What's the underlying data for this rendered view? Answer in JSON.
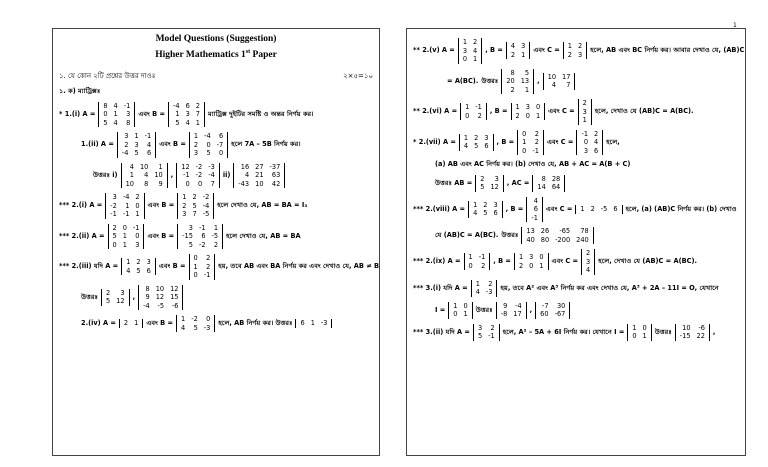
{
  "pages": [
    {
      "title": [
        "Model Questions (Suggestion)",
        "Higher Mathematics 1",
        "st",
        " Paper"
      ],
      "instruction": {
        "text": "১.     যে কোন ২টি প্রশ্নের উত্তর দাওঃ",
        "marks": "২×৫=১০"
      },
      "lines": [
        [
          "১. ক) ম্যাট্রিক্সঃ"
        ],
        [
          "*      1.(i) A =",
          {
            "matrix": [
              [
                8,
                4,
                -1
              ],
              [
                0,
                1,
                3
              ],
              [
                5,
                4,
                8
              ]
            ]
          },
          "এবং B =",
          {
            "matrix": [
              [
                -4,
                6,
                2
              ],
              [
                1,
                3,
                7
              ],
              [
                5,
                4,
                1
              ]
            ]
          },
          "ম্যাট্রিক্স দুইটির সমষ্টি ও অন্তর নির্ণয় কর।"
        ],
        [
          "1.(ii) A =",
          {
            "matrix": [
              [
                3,
                1,
                -1
              ],
              [
                2,
                3,
                4
              ],
              [
                -4,
                5,
                6
              ]
            ]
          },
          "এবং B =",
          {
            "matrix": [
              [
                1,
                -4,
                6
              ],
              [
                2,
                0,
                -7
              ],
              [
                3,
                5,
                0
              ]
            ]
          },
          "হলে 7A – 5B নির্ণয় কর।"
        ],
        [
          "উত্তরঃ i)",
          {
            "matrix": [
              [
                4,
                10,
                1
              ],
              [
                1,
                4,
                10
              ],
              [
                10,
                8,
                9
              ]
            ]
          },
          ",",
          {
            "matrix": [
              [
                12,
                -2,
                -3
              ],
              [
                -1,
                -2,
                -4
              ],
              [
                0,
                0,
                7
              ]
            ]
          },
          "ii)",
          {
            "matrix": [
              [
                16,
                27,
                -37
              ],
              [
                4,
                21,
                63
              ],
              [
                -43,
                10,
                42
              ]
            ]
          }
        ],
        [
          "*** 2.(i) A =",
          {
            "matrix": [
              [
                3,
                -4,
                2
              ],
              [
                -2,
                1,
                0
              ],
              [
                -1,
                -1,
                1
              ]
            ]
          },
          "এবং B =",
          {
            "matrix": [
              [
                1,
                2,
                -2
              ],
              [
                2,
                5,
                -4
              ],
              [
                3,
                7,
                -5
              ]
            ]
          },
          "হলে দেখাও যে, AB = BA = I₃"
        ],
        [
          "*** 2.(ii) A =",
          {
            "matrix": [
              [
                2,
                0,
                -1
              ],
              [
                5,
                1,
                0
              ],
              [
                0,
                1,
                3
              ]
            ]
          },
          "এবং B =",
          {
            "matrix": [
              [
                3,
                -1,
                1
              ],
              [
                -15,
                6,
                -5
              ],
              [
                5,
                -2,
                2
              ]
            ]
          },
          "হলে দেখাও যে, AB = BA"
        ],
        [
          "*** 2.(iii) যদি A =",
          {
            "matrix": [
              [
                1,
                2,
                3
              ],
              [
                4,
                5,
                6
              ]
            ]
          },
          "এবং B =",
          {
            "matrix": [
              [
                0,
                2
              ],
              [
                1,
                2
              ],
              [
                0,
                -1
              ]
            ]
          },
          "হয়, তবে AB এবং BA নির্ণয় কর এবং দেখাও যে, AB ≠ BA."
        ],
        [
          "উত্তরঃ",
          {
            "matrix": [
              [
                2,
                3
              ],
              [
                5,
                12
              ]
            ]
          },
          ",",
          {
            "matrix": [
              [
                8,
                10,
                12
              ],
              [
                9,
                12,
                15
              ],
              [
                -4,
                -5,
                -6
              ]
            ]
          }
        ],
        [
          "2.(iv) A =",
          {
            "matrix": [
              [
                2,
                1
              ]
            ]
          },
          "এবং B =",
          {
            "matrix": [
              [
                1,
                -2,
                0
              ],
              [
                4,
                5,
                -3
              ]
            ]
          },
          "হলে, AB নির্ণয় কর।  উত্তরঃ",
          {
            "matrix": [
              [
                6,
                1,
                -3
              ]
            ]
          }
        ]
      ]
    },
    {
      "page_number": 1,
      "lines": [
        [
          "** 2.(v) A =",
          {
            "matrix": [
              [
                1,
                2
              ],
              [
                3,
                4
              ],
              [
                0,
                1
              ]
            ]
          },
          ", B =",
          {
            "matrix": [
              [
                4,
                3
              ],
              [
                2,
                1
              ]
            ]
          },
          "এবং C =",
          {
            "matrix": [
              [
                1,
                2
              ],
              [
                2,
                3
              ]
            ]
          },
          "হলে, AB এবং BC নির্ণয় কর। আবার দেখাও যে, (AB)C"
        ],
        [
          "= A(BC).",
          "উত্তরঃ",
          {
            "matrix": [
              [
                8,
                5
              ],
              [
                20,
                13
              ],
              [
                2,
                1
              ]
            ]
          },
          ",",
          {
            "matrix": [
              [
                10,
                17
              ],
              [
                4,
                7
              ]
            ]
          }
        ],
        [
          "** 2.(vi) A =",
          {
            "matrix": [
              [
                1,
                -1
              ],
              [
                0,
                2
              ]
            ]
          },
          ", B =",
          {
            "matrix": [
              [
                1,
                3,
                0
              ],
              [
                2,
                0,
                1
              ]
            ]
          },
          "এবং C =",
          {
            "matrix": [
              [
                2
              ],
              [
                3
              ],
              [
                1
              ]
            ]
          },
          "হলে, দেখাও যে (AB)C = A(BC)."
        ],
        [
          "*   2.(vii) A =",
          {
            "matrix": [
              [
                1,
                2,
                3
              ],
              [
                4,
                5,
                6
              ]
            ]
          },
          ", B =",
          {
            "matrix": [
              [
                0,
                2
              ],
              [
                1,
                2
              ],
              [
                0,
                -1
              ]
            ]
          },
          "এবং C =",
          {
            "matrix": [
              [
                -1,
                2
              ],
              [
                0,
                4
              ],
              [
                3,
                6
              ]
            ]
          },
          "হলে,"
        ],
        [
          "(a) AB এবং AC নির্ণয় কর। (b) দেখাও যে, AB + AC = A(B + C)"
        ],
        [
          "উত্তরঃ AB =",
          {
            "matrix": [
              [
                2,
                3
              ],
              [
                5,
                12
              ]
            ]
          },
          ", AC =",
          {
            "matrix": [
              [
                8,
                28
              ],
              [
                14,
                64
              ]
            ]
          }
        ],
        [
          "*** 2.(viii) A =",
          {
            "matrix": [
              [
                1,
                2,
                3
              ],
              [
                4,
                5,
                6
              ]
            ]
          },
          ", B =",
          {
            "matrix": [
              [
                4
              ],
              [
                6
              ],
              [
                -1
              ]
            ]
          },
          "এবং C =",
          {
            "matrix": [
              [
                1,
                2,
                -5,
                6
              ]
            ]
          },
          "হলে, (a) (AB)C নির্ণয় কর। (b) দেখাও"
        ],
        [
          "যে (AB)C = A(BC).",
          "উত্তরঃ",
          {
            "matrix": [
              [
                13,
                26,
                -65,
                78
              ],
              [
                40,
                80,
                -200,
                240
              ]
            ]
          }
        ],
        [
          "*** 2.(ix) A =",
          {
            "matrix": [
              [
                1,
                -1
              ],
              [
                0,
                2
              ]
            ]
          },
          ", B =",
          {
            "matrix": [
              [
                1,
                3,
                0
              ],
              [
                2,
                0,
                1
              ]
            ]
          },
          "এবং C =",
          {
            "matrix": [
              [
                2
              ],
              [
                3
              ],
              [
                4
              ]
            ]
          },
          "হলে, দেখাও যে (AB)C = A(BC)."
        ],
        [
          "*** 3.(i) যদি A =",
          {
            "matrix": [
              [
                1,
                2
              ],
              [
                4,
                -3
              ]
            ]
          },
          "হয়, তবে A² এবং A³ নির্ণয় কর এবং দেখাও যে, A³ + 2A – 11I = O, যেখানে"
        ],
        [
          "I =",
          {
            "matrix": [
              [
                1,
                0
              ],
              [
                0,
                1
              ]
            ]
          },
          "উত্তরঃ",
          {
            "matrix": [
              [
                9,
                -4
              ],
              [
                -8,
                17
              ]
            ]
          },
          ",",
          {
            "matrix": [
              [
                -7,
                30
              ],
              [
                60,
                -67
              ]
            ]
          }
        ],
        [
          "*** 3.(ii) যদি A =",
          {
            "matrix": [
              [
                3,
                2
              ],
              [
                5,
                -1
              ]
            ]
          },
          "হলে, A² – 5A + 6I নির্ণয় কর। যেখানে I =",
          {
            "matrix": [
              [
                1,
                0
              ],
              [
                0,
                1
              ]
            ]
          },
          "উত্তরঃ",
          {
            "matrix": [
              [
                10,
                -6
              ],
              [
                -15,
                22
              ]
            ]
          },
          ","
        ]
      ]
    }
  ]
}
